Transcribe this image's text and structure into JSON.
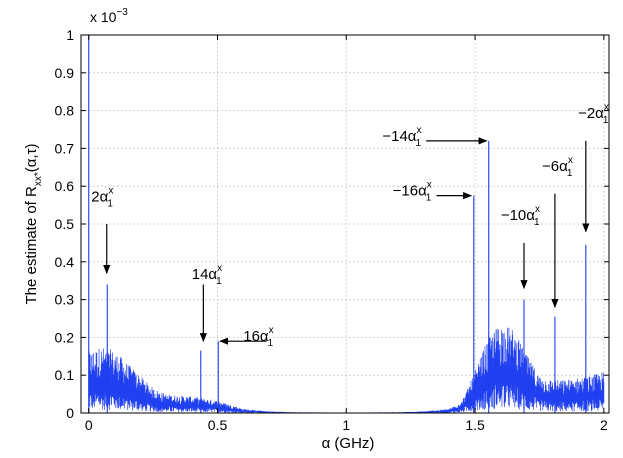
{
  "chart_data": {
    "type": "line",
    "x_label": "α (GHz)",
    "y_label_main": "The estimate of R",
    "y_label_sub": "xx*",
    "y_label_tail": "(α,τ)",
    "y_multiplier_base": "x 10",
    "y_multiplier_exp": "−3",
    "xlim": [
      -0.03,
      2.02
    ],
    "ylim": [
      0,
      1
    ],
    "x_ticks": [
      0,
      0.5,
      1,
      1.5,
      2
    ],
    "x_tick_labels": [
      "0",
      "0.5",
      "1",
      "1.5",
      "2"
    ],
    "y_ticks": [
      0,
      0.1,
      0.2,
      0.3,
      0.4,
      0.5,
      0.6,
      0.7,
      0.8,
      0.9,
      1
    ],
    "y_tick_labels": [
      "0",
      "0.1",
      "0.2",
      "0.3",
      "0.4",
      "0.5",
      "0.6",
      "0.7",
      "0.8",
      "0.9",
      "1"
    ],
    "grid": true,
    "series_color": "#1f3ff0",
    "envelope": [
      {
        "x": 0.0,
        "y": 0.15
      },
      {
        "x": 0.05,
        "y": 0.16
      },
      {
        "x": 0.1,
        "y": 0.15
      },
      {
        "x": 0.15,
        "y": 0.12
      },
      {
        "x": 0.2,
        "y": 0.09
      },
      {
        "x": 0.25,
        "y": 0.06
      },
      {
        "x": 0.3,
        "y": 0.045
      },
      {
        "x": 0.4,
        "y": 0.04
      },
      {
        "x": 0.5,
        "y": 0.03
      },
      {
        "x": 0.55,
        "y": 0.02
      },
      {
        "x": 0.6,
        "y": 0.01
      },
      {
        "x": 0.7,
        "y": 0.004
      },
      {
        "x": 0.8,
        "y": 0.002
      },
      {
        "x": 1.0,
        "y": 0.001
      },
      {
        "x": 1.2,
        "y": 0.002
      },
      {
        "x": 1.3,
        "y": 0.004
      },
      {
        "x": 1.4,
        "y": 0.01
      },
      {
        "x": 1.45,
        "y": 0.03
      },
      {
        "x": 1.5,
        "y": 0.1
      },
      {
        "x": 1.55,
        "y": 0.18
      },
      {
        "x": 1.6,
        "y": 0.22
      },
      {
        "x": 1.65,
        "y": 0.2
      },
      {
        "x": 1.7,
        "y": 0.14
      },
      {
        "x": 1.75,
        "y": 0.09
      },
      {
        "x": 1.8,
        "y": 0.08
      },
      {
        "x": 1.85,
        "y": 0.08
      },
      {
        "x": 1.9,
        "y": 0.085
      },
      {
        "x": 1.95,
        "y": 0.09
      },
      {
        "x": 2.0,
        "y": 0.1
      }
    ],
    "peaks": [
      {
        "x": 0.0,
        "y": 1.0
      },
      {
        "x": 0.072,
        "y": 0.34
      },
      {
        "x": 0.435,
        "y": 0.165
      },
      {
        "x": 0.503,
        "y": 0.19
      },
      {
        "x": 1.495,
        "y": 0.575
      },
      {
        "x": 1.553,
        "y": 0.72
      },
      {
        "x": 1.69,
        "y": 0.3
      },
      {
        "x": 1.81,
        "y": 0.255
      },
      {
        "x": 1.93,
        "y": 0.445
      }
    ],
    "annotations": [
      {
        "label": "2α",
        "sup": "x",
        "sub": "1",
        "text_x": 0.01,
        "text_y": 0.56,
        "arrow_from": [
          0.07,
          0.5
        ],
        "arrow_to": [
          0.07,
          0.37
        ]
      },
      {
        "label": "14α",
        "sup": "x",
        "sub": "1",
        "text_x": 0.4,
        "text_y": 0.355,
        "arrow_from": [
          0.445,
          0.34
        ],
        "arrow_to": [
          0.445,
          0.19
        ]
      },
      {
        "label": "16α",
        "sup": "x",
        "sub": "1",
        "text_x": 0.6,
        "text_y": 0.19,
        "arrow_from": [
          0.69,
          0.19
        ],
        "arrow_to": [
          0.51,
          0.19
        ]
      },
      {
        "label": "−16α",
        "sup": "x",
        "sub": "1",
        "text_x": 1.18,
        "text_y": 0.575,
        "arrow_from": [
          1.35,
          0.575
        ],
        "arrow_to": [
          1.485,
          0.575
        ]
      },
      {
        "label": "−14α",
        "sup": "x",
        "sub": "1",
        "text_x": 1.14,
        "text_y": 0.72,
        "arrow_from": [
          1.31,
          0.72
        ],
        "arrow_to": [
          1.545,
          0.72
        ]
      },
      {
        "label": "−10α",
        "sup": "x",
        "sub": "1",
        "text_x": 1.6,
        "text_y": 0.51,
        "arrow_from": [
          1.69,
          0.45
        ],
        "arrow_to": [
          1.69,
          0.33
        ]
      },
      {
        "label": "−6α",
        "sup": "x",
        "sub": "1",
        "text_x": 1.76,
        "text_y": 0.64,
        "arrow_from": [
          1.81,
          0.58
        ],
        "arrow_to": [
          1.81,
          0.28
        ]
      },
      {
        "label": "−2α",
        "sup": "x",
        "sub": "1",
        "text_x": 1.9,
        "text_y": 0.78,
        "arrow_from": [
          1.93,
          0.72
        ],
        "arrow_to": [
          1.93,
          0.48
        ]
      }
    ]
  }
}
